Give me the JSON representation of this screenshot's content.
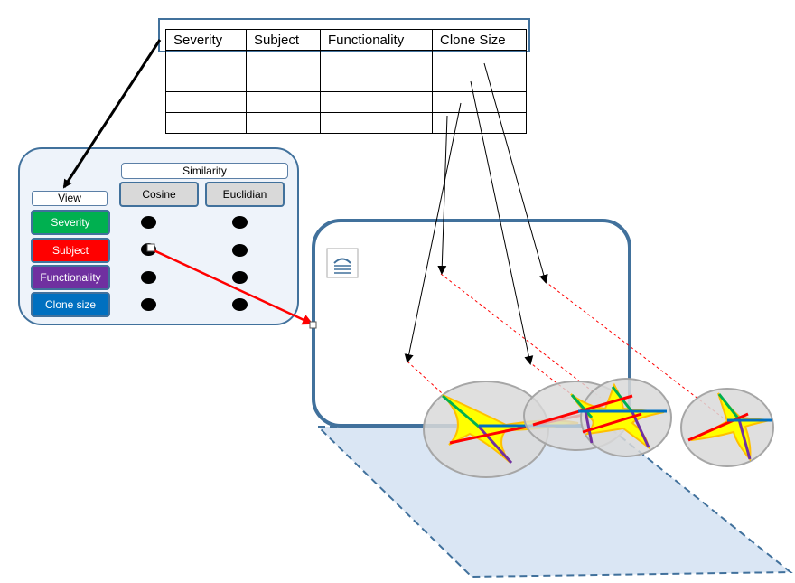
{
  "table": {
    "headers": [
      "Severity",
      "Subject",
      "Functionality",
      "Clone Size"
    ],
    "rows": [
      [
        "",
        "",
        "",
        ""
      ],
      [
        "",
        "",
        "",
        ""
      ],
      [
        "",
        "",
        "",
        ""
      ],
      [
        "",
        "",
        "",
        ""
      ]
    ]
  },
  "panel": {
    "similarity_label": "Similarity",
    "view_label": "View",
    "columns": [
      "Cosine",
      "Euclidian"
    ],
    "views": [
      {
        "label": "Severity",
        "color": "#00b050"
      },
      {
        "label": "Subject",
        "color": "#ff0000"
      },
      {
        "label": "Functionality",
        "color": "#7030a0"
      },
      {
        "label": "Clone size",
        "color": "#0070c0"
      }
    ]
  },
  "colors": {
    "frame": "#41719c",
    "plane": "#dae6f4",
    "connector_red": "#ff0000",
    "star_fill": "#ffff00",
    "star_edge": "#ffc000",
    "bubble": "#d9d9d9"
  },
  "icons": {
    "view_icon": "document-icon"
  }
}
